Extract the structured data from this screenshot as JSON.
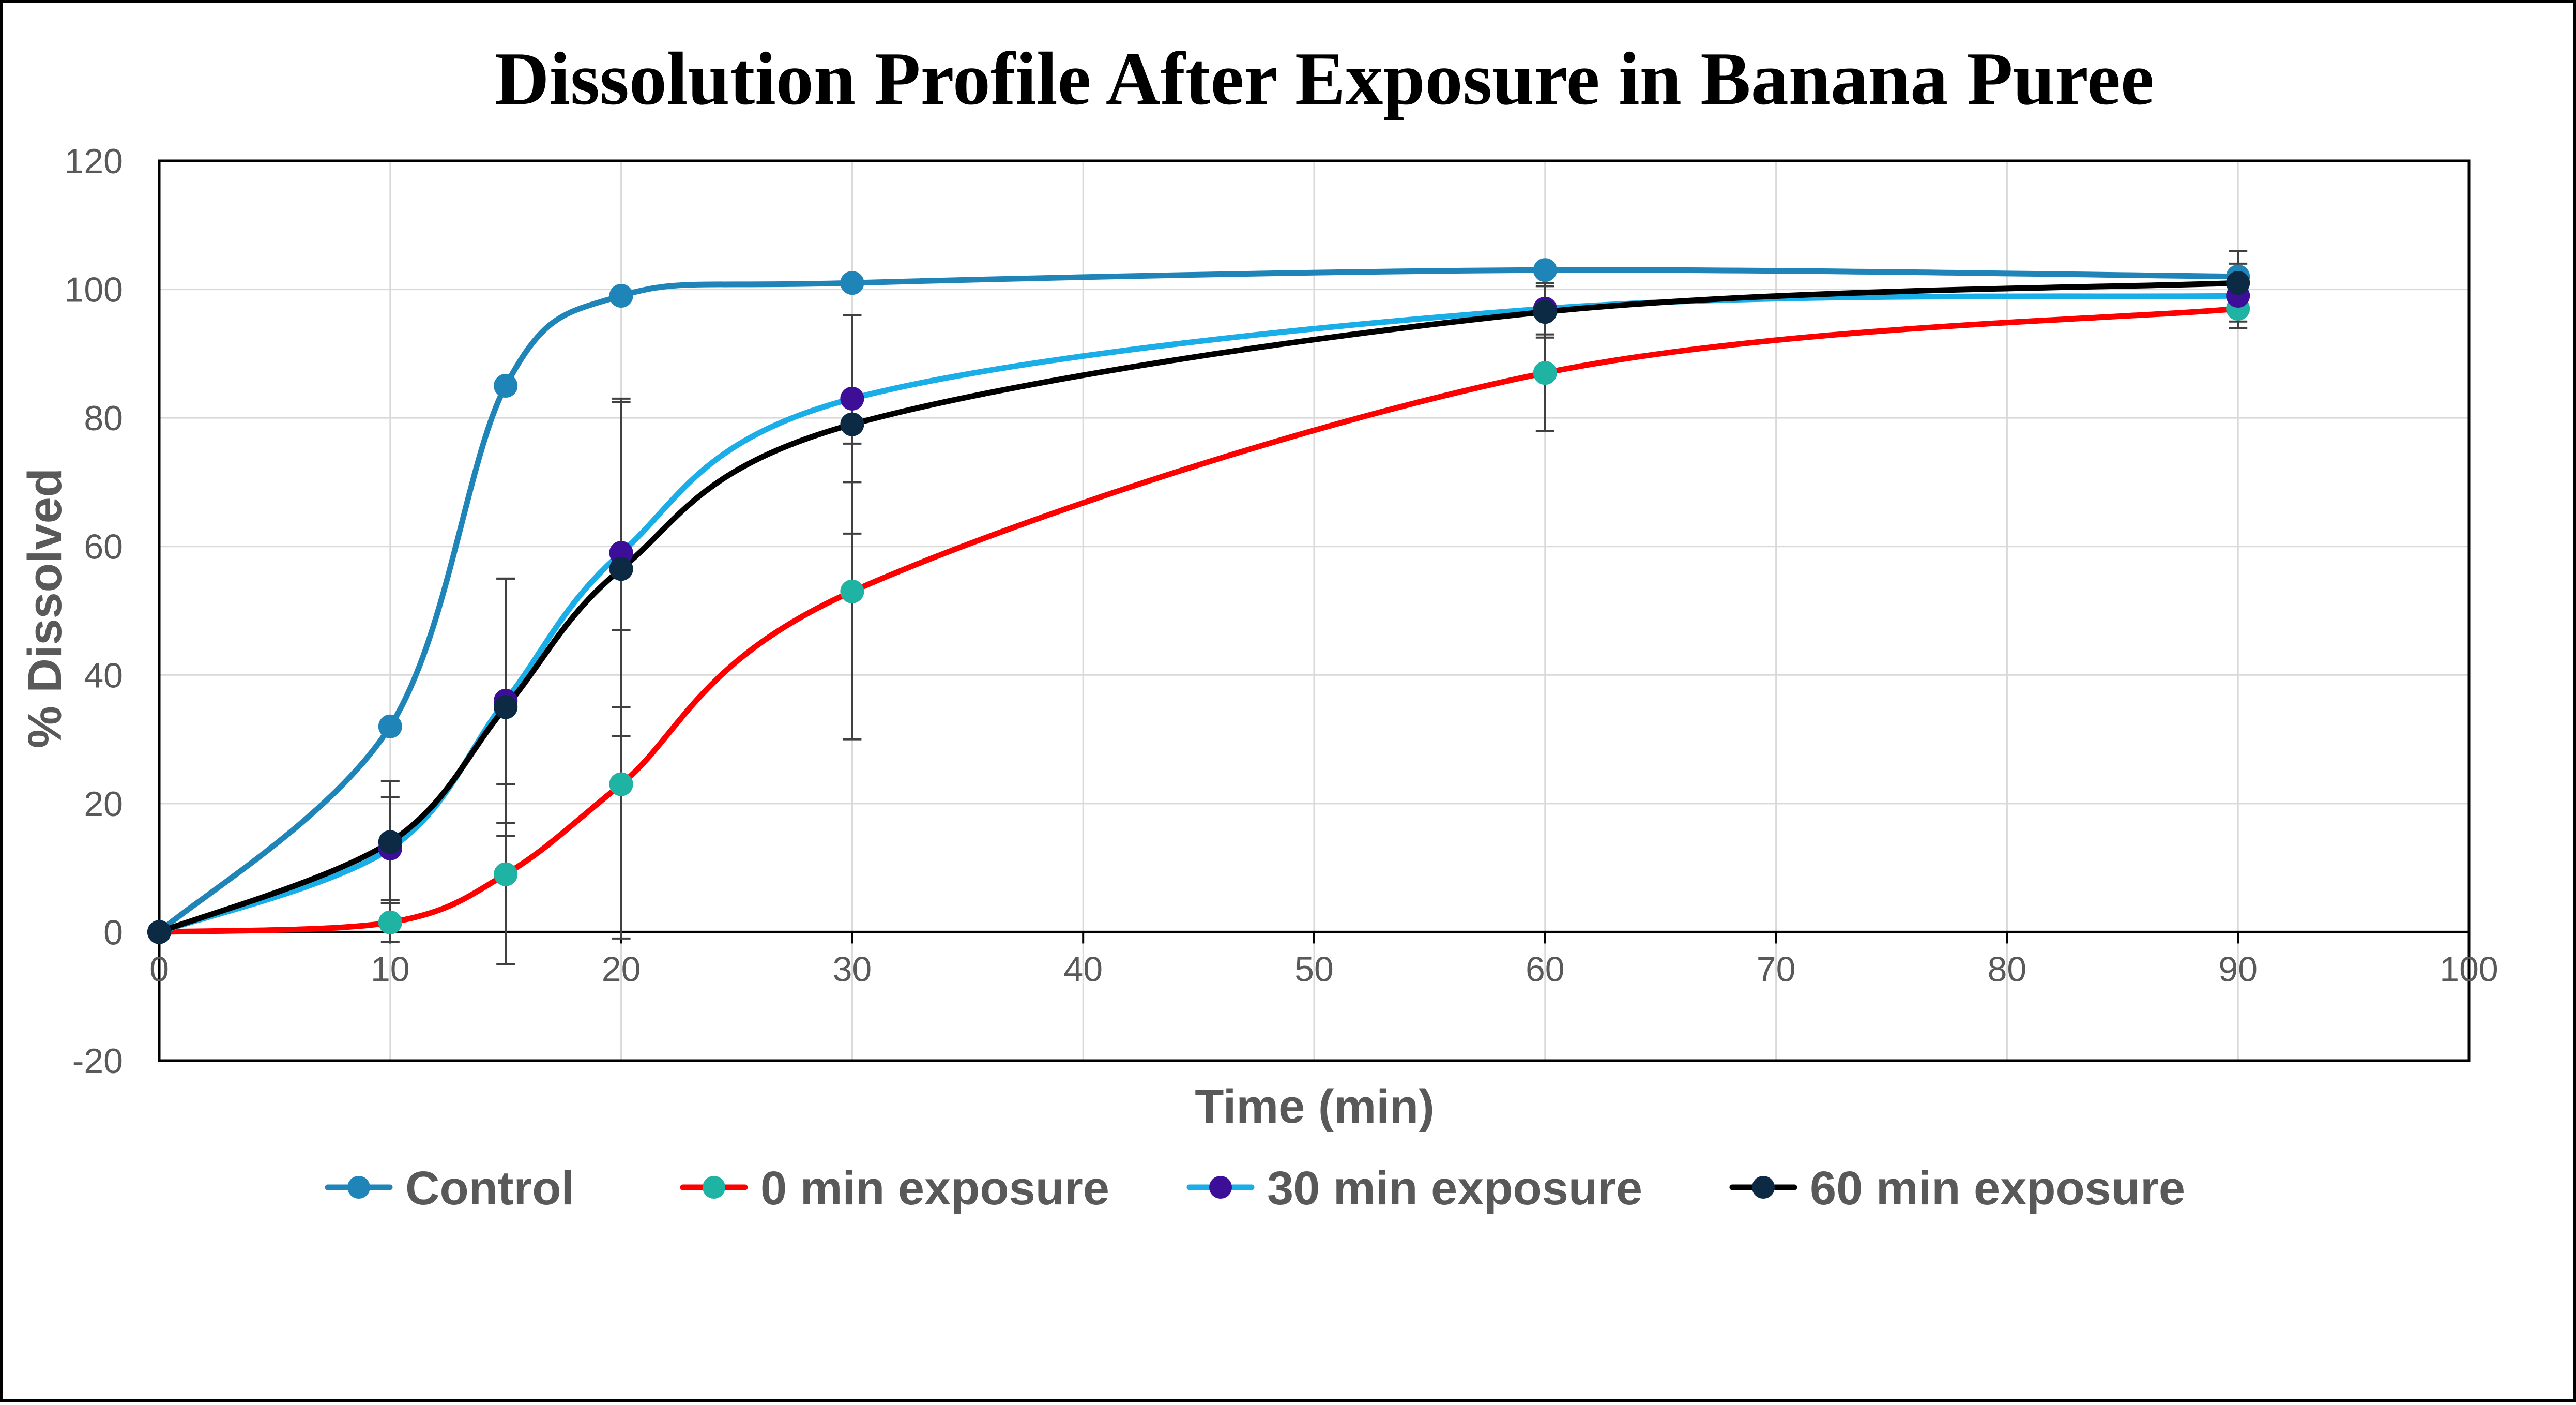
{
  "chart_data": {
    "type": "line",
    "title": "Dissolution Profile After Exposure in Banana Puree",
    "xlabel": "Time (min)",
    "ylabel": "% Dissolved",
    "xlim": [
      0,
      100
    ],
    "ylim": [
      -20,
      120
    ],
    "x_ticks": [
      0,
      10,
      20,
      30,
      40,
      50,
      60,
      70,
      80,
      90,
      100
    ],
    "y_ticks": [
      -20,
      0,
      20,
      40,
      60,
      80,
      100,
      120
    ],
    "grid": true,
    "legend_position": "bottom",
    "series": [
      {
        "name": "Control",
        "line_color": "#1f85b8",
        "marker_color": "#1f85b8",
        "x": [
          0,
          10,
          15,
          20,
          30,
          60,
          90
        ],
        "y": [
          0,
          32,
          85,
          99,
          101,
          103,
          102
        ],
        "error": [
          0,
          0,
          0,
          0,
          0,
          0,
          0
        ]
      },
      {
        "name": "0 min exposure",
        "line_color": "#ff0000",
        "marker_color": "#1fb3a3",
        "x": [
          0,
          10,
          15,
          20,
          30,
          60,
          90
        ],
        "y": [
          0,
          1.5,
          9,
          23,
          53,
          87,
          97
        ],
        "error": [
          0,
          3,
          14,
          24,
          23,
          9,
          2
        ]
      },
      {
        "name": "30 min exposure",
        "line_color": "#1aaee8",
        "marker_color": "#3d0f99",
        "x": [
          0,
          10,
          15,
          20,
          30,
          60,
          90
        ],
        "y": [
          0,
          13,
          36,
          59,
          83,
          97,
          99
        ],
        "error": [
          0,
          8,
          19,
          24,
          13,
          4,
          5
        ]
      },
      {
        "name": "60 min exposure",
        "line_color": "#000000",
        "marker_color": "#0d2a45",
        "x": [
          0,
          10,
          15,
          20,
          30,
          60,
          90
        ],
        "y": [
          0,
          14,
          35,
          56.5,
          79,
          96.5,
          101
        ],
        "error": [
          0,
          9.5,
          20,
          26,
          17,
          4,
          5
        ]
      }
    ]
  }
}
